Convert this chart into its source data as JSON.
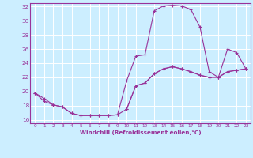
{
  "xlabel": "Windchill (Refroidissement éolien,°C)",
  "bg_color": "#cceeff",
  "line_color": "#993399",
  "grid_color": "#ffffff",
  "xlim": [
    -0.5,
    23.5
  ],
  "ylim": [
    15.5,
    32.5
  ],
  "xticks": [
    0,
    1,
    2,
    3,
    4,
    5,
    6,
    7,
    8,
    9,
    10,
    11,
    12,
    13,
    14,
    15,
    16,
    17,
    18,
    19,
    20,
    21,
    22,
    23
  ],
  "yticks": [
    16,
    18,
    20,
    22,
    24,
    26,
    28,
    30,
    32
  ],
  "segments": [
    {
      "x": [
        0,
        1,
        2,
        3,
        4,
        5,
        6,
        7,
        8,
        9,
        10,
        11,
        12,
        13,
        14,
        15,
        16,
        17,
        18,
        19,
        20,
        21,
        22,
        23
      ],
      "y": [
        19.8,
        19.0,
        18.1,
        17.8,
        16.9,
        16.6,
        16.6,
        16.6,
        16.6,
        16.7,
        17.5,
        20.8,
        21.2,
        22.5,
        23.2,
        23.5,
        23.2,
        22.8,
        22.3,
        22.0,
        22.0,
        22.8,
        23.0,
        23.2
      ]
    },
    {
      "x": [
        0,
        1,
        2,
        3,
        4,
        5,
        6,
        7,
        8,
        9,
        10,
        11,
        12,
        13,
        14,
        15,
        16,
        17,
        18,
        19,
        20,
        21,
        22,
        23
      ],
      "y": [
        19.8,
        18.6,
        18.1,
        17.8,
        16.9,
        16.6,
        16.6,
        16.6,
        16.6,
        16.7,
        21.5,
        25.0,
        25.2,
        31.4,
        32.1,
        32.2,
        32.1,
        31.6,
        29.1,
        22.8,
        22.0,
        26.0,
        25.5,
        23.2
      ]
    },
    {
      "x": [
        10,
        11,
        12,
        13,
        14,
        15,
        16,
        17,
        18,
        19,
        20,
        21,
        22,
        23
      ],
      "y": [
        17.5,
        20.8,
        21.2,
        22.5,
        23.2,
        23.5,
        23.2,
        22.8,
        22.3,
        22.0,
        22.0,
        22.8,
        23.0,
        23.2
      ]
    }
  ]
}
